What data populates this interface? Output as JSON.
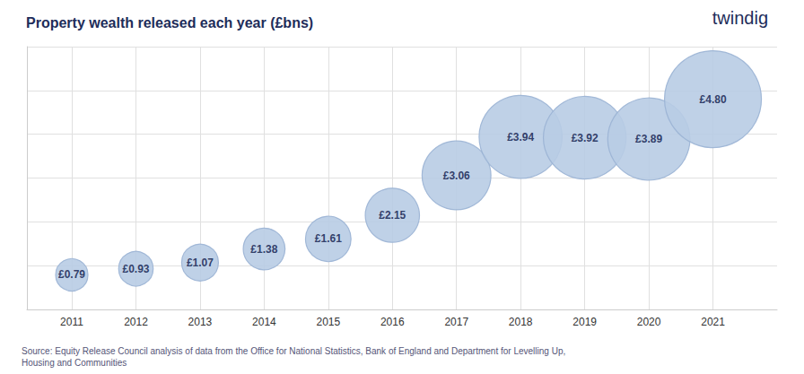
{
  "chart_data": {
    "type": "scatter",
    "title": "Property wealth released each year (£bns)",
    "x": [
      2011,
      2012,
      2013,
      2014,
      2015,
      2016,
      2017,
      2018,
      2019,
      2020,
      2021
    ],
    "values": [
      0.79,
      0.93,
      1.07,
      1.38,
      1.61,
      2.15,
      3.06,
      3.94,
      3.92,
      3.89,
      4.8
    ],
    "value_labels": [
      "£0.79",
      "£0.93",
      "£1.07",
      "£1.38",
      "£1.61",
      "£2.15",
      "£3.06",
      "£3.94",
      "£3.92",
      "£3.89",
      "£4.80"
    ],
    "data_labels": true,
    "marker": "circle",
    "color": "#b8cce4",
    "xlim": [
      2010.3,
      2022.0
    ],
    "xticks": [
      2011,
      2012,
      2013,
      2014,
      2015,
      2016,
      2017,
      2018,
      2019,
      2020,
      2021
    ],
    "ylim": [
      0.0,
      6.0
    ],
    "yticks": [
      0,
      1,
      2,
      3,
      4,
      5,
      6
    ],
    "grid": true,
    "tick_labels": "x",
    "annotations": [
      "Source: Equity Release Council analysis of data from the Office for National Statistics, Bank of England and Department for Levelling Up,\nHousing and Communities",
      "twindig"
    ]
  }
}
